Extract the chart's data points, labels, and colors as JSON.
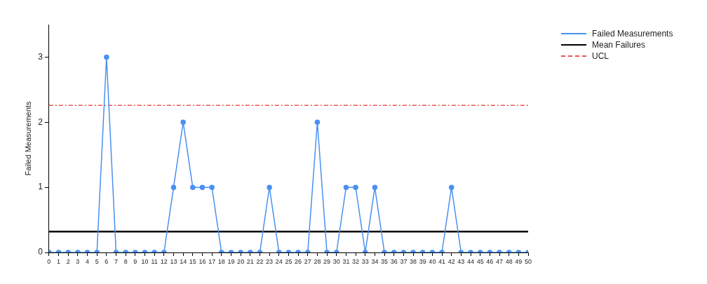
{
  "chart_data": {
    "type": "line",
    "ylabel": "Failed Measurements",
    "x": [
      0,
      1,
      2,
      3,
      4,
      5,
      6,
      7,
      8,
      9,
      10,
      11,
      12,
      13,
      14,
      15,
      16,
      17,
      18,
      19,
      20,
      21,
      22,
      23,
      24,
      25,
      26,
      27,
      28,
      29,
      30,
      31,
      32,
      33,
      34,
      35,
      36,
      37,
      38,
      39,
      40,
      41,
      42,
      43,
      44,
      45,
      46,
      47,
      48,
      49,
      50
    ],
    "series": [
      {
        "name": "Failed Measurements",
        "color": "#4a90f0",
        "values": [
          0,
          0,
          0,
          0,
          0,
          0,
          3,
          0,
          0,
          0,
          0,
          0,
          0,
          1,
          2,
          1,
          1,
          1,
          0,
          0,
          0,
          0,
          0,
          1,
          0,
          0,
          0,
          0,
          2,
          0,
          0,
          1,
          1,
          0,
          1,
          0,
          0,
          0,
          0,
          0,
          0,
          0,
          1,
          0,
          0,
          0,
          0,
          0,
          0,
          0,
          0
        ]
      }
    ],
    "xlim": [
      0,
      50
    ],
    "xticks": [
      0,
      1,
      2,
      3,
      4,
      5,
      6,
      7,
      8,
      9,
      10,
      11,
      12,
      13,
      14,
      15,
      16,
      17,
      18,
      19,
      20,
      21,
      22,
      23,
      24,
      25,
      26,
      27,
      28,
      29,
      30,
      31,
      32,
      33,
      34,
      35,
      36,
      37,
      38,
      39,
      40,
      41,
      42,
      43,
      44,
      45,
      46,
      47,
      48,
      49,
      50
    ],
    "ylim": [
      0,
      3.5
    ],
    "yticks": [
      0,
      1,
      2,
      3
    ],
    "ref_lines": [
      {
        "axis": "y",
        "value": 0.32,
        "label": "Mean Failures",
        "color": "#000000",
        "line_style": "solid"
      },
      {
        "axis": "y",
        "value": 2.26,
        "label": "UCL",
        "color": "#f05050",
        "line_style": "dashed"
      }
    ],
    "grid": false,
    "legend": "top right",
    "marker": "circle",
    "line_style": "solid"
  }
}
